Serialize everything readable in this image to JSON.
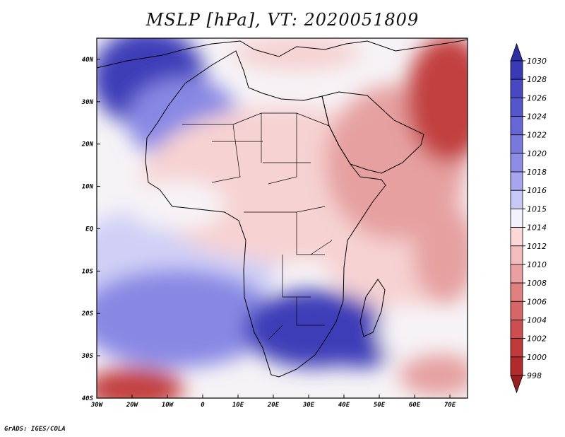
{
  "title": "MSLP [hPa], VT: 2020051809",
  "credit": "GrADS: IGES/COLA",
  "map": {
    "variable": "MSLP",
    "units": "hPa",
    "valid_time": "2020051809",
    "lon_range": [
      -30,
      75
    ],
    "lat_range": [
      -40,
      45
    ],
    "x_ticks": [
      {
        "lon": -30,
        "label": "30W"
      },
      {
        "lon": -20,
        "label": "20W"
      },
      {
        "lon": -10,
        "label": "10W"
      },
      {
        "lon": 0,
        "label": "0"
      },
      {
        "lon": 10,
        "label": "10E"
      },
      {
        "lon": 20,
        "label": "20E"
      },
      {
        "lon": 30,
        "label": "30E"
      },
      {
        "lon": 40,
        "label": "40E"
      },
      {
        "lon": 50,
        "label": "50E"
      },
      {
        "lon": 60,
        "label": "60E"
      },
      {
        "lon": 70,
        "label": "70E"
      }
    ],
    "y_ticks": [
      {
        "lat": 40,
        "label": "40N"
      },
      {
        "lat": 30,
        "label": "30N"
      },
      {
        "lat": 20,
        "label": "20N"
      },
      {
        "lat": 10,
        "label": "10N"
      },
      {
        "lat": 0,
        "label": "EQ"
      },
      {
        "lat": -10,
        "label": "10S"
      },
      {
        "lat": -20,
        "label": "20S"
      },
      {
        "lat": -30,
        "label": "30S"
      },
      {
        "lat": -40,
        "label": "40S"
      }
    ]
  },
  "colorbar": {
    "levels": [
      "1030",
      "1028",
      "1026",
      "1024",
      "1022",
      "1020",
      "1018",
      "1016",
      "1015",
      "1014",
      "1012",
      "1010",
      "1008",
      "1006",
      "1004",
      "1002",
      "1000",
      "998"
    ],
    "colors": [
      "#2e2ea6",
      "#3a3ab6",
      "#4848c2",
      "#5656cc",
      "#6666d6",
      "#7878de",
      "#8c8ce6",
      "#a6a6ee",
      "#c8c8f6",
      "#f2f2fa",
      "#fad8d8",
      "#f4bcbc",
      "#eaa0a0",
      "#e08080",
      "#d86666",
      "#cc4e4e",
      "#c03a3a",
      "#b22a2a",
      "#9a1e1e"
    ]
  },
  "palette": {
    "high": "#3c3cb8",
    "mid_high": "#8888e4",
    "pale_high": "#d0d0f6",
    "neutral": "#f6f3f6",
    "pale_low": "#f6d2d2",
    "mid_low": "#e6a0a0",
    "low": "#c24040",
    "outline": "#000000"
  }
}
